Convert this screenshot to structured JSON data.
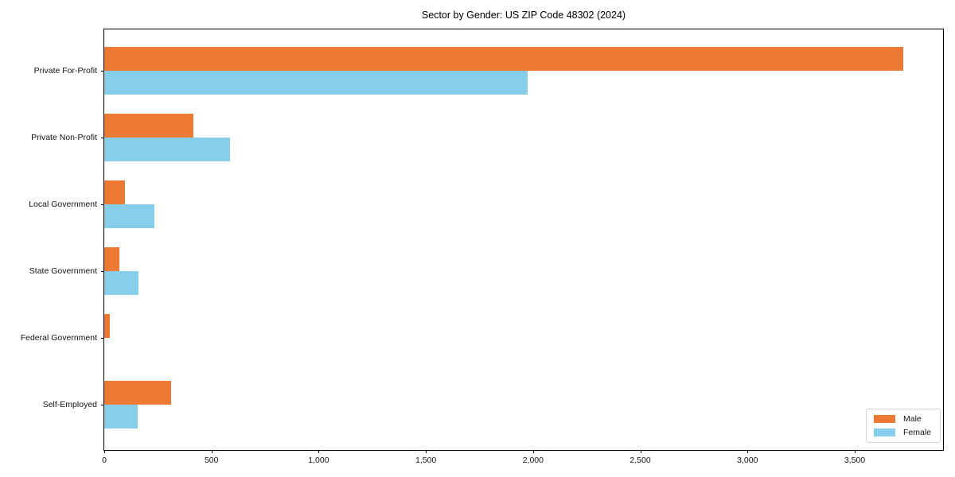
{
  "figure": {
    "background": "#ffffff",
    "axis_color": "#000000",
    "legend_border_color": "#d4d4d4"
  },
  "chart_data": {
    "type": "bar",
    "orientation": "horizontal",
    "title": "Sector by Gender: US ZIP Code 48302 (2024)",
    "categories": [
      "Private For-Profit",
      "Private Non-Profit",
      "Local Government",
      "State Government",
      "Federal Government",
      "Self-Employed"
    ],
    "series": [
      {
        "name": "Male",
        "color": "#ec7a35",
        "values": [
          3725,
          415,
          95,
          70,
          25,
          310
        ]
      },
      {
        "name": "Female",
        "color": "#87ceeb",
        "values": [
          1975,
          585,
          235,
          160,
          0,
          155
        ]
      }
    ],
    "xlabel": "",
    "ylabel": "",
    "xlim": [
      0,
      3912
    ],
    "xticks": [
      0,
      500,
      1000,
      1500,
      2000,
      2500,
      3000,
      3500
    ],
    "xtick_labels": [
      "0",
      "500",
      "1,000",
      "1,500",
      "2,000",
      "2,500",
      "3,000",
      "3,500"
    ],
    "grid": false,
    "legend": {
      "position": "lower-right",
      "entries": [
        "Male",
        "Female"
      ]
    }
  }
}
